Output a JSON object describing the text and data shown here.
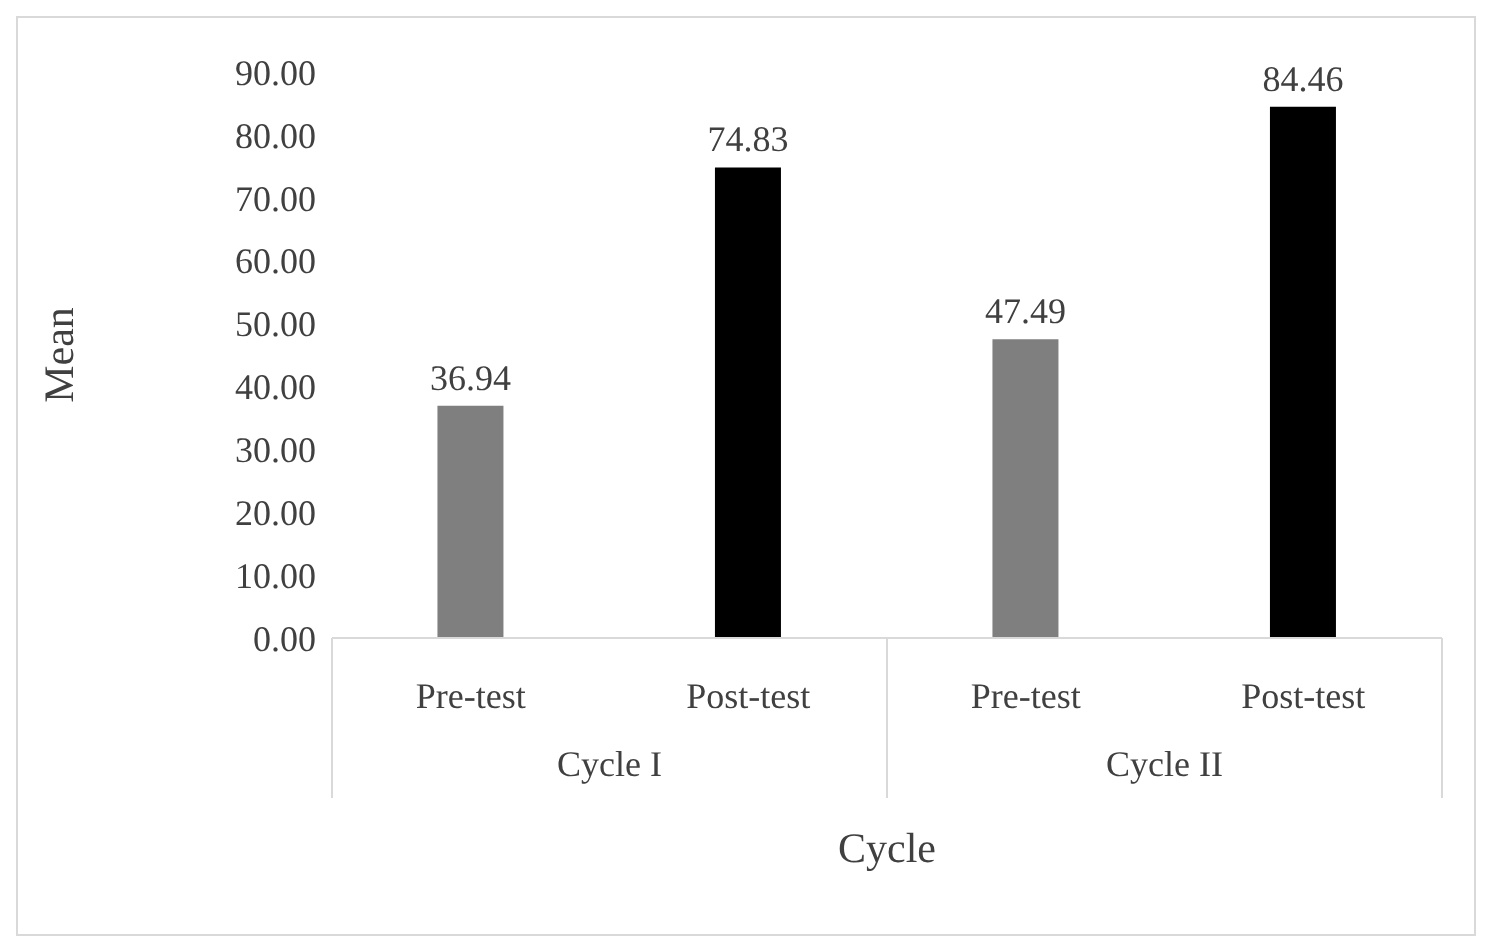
{
  "chart_data": {
    "type": "bar",
    "xlabel": "Cycle",
    "ylabel": "Mean",
    "categories": [
      "Pre-test",
      "Post-test",
      "Pre-test",
      "Post-test"
    ],
    "values": [
      36.94,
      74.83,
      47.49,
      84.46
    ],
    "colors": [
      "#7f7f7f",
      "#000000",
      "#7f7f7f",
      "#000000"
    ],
    "data_labels": true,
    "ylim": [
      0,
      90
    ],
    "yticks": [
      {
        "value": 0,
        "label": "0.00"
      },
      {
        "value": 10,
        "label": "10.00"
      },
      {
        "value": 20,
        "label": "20.00"
      },
      {
        "value": 30,
        "label": "30.00"
      },
      {
        "value": 40,
        "label": "40.00"
      },
      {
        "value": 50,
        "label": "50.00"
      },
      {
        "value": 60,
        "label": "60.00"
      },
      {
        "value": 70,
        "label": "70.00"
      },
      {
        "value": 80,
        "label": "80.00"
      },
      {
        "value": 90,
        "label": "90.00"
      }
    ],
    "annotations": [
      "Cycle I",
      "Cycle II"
    ]
  }
}
